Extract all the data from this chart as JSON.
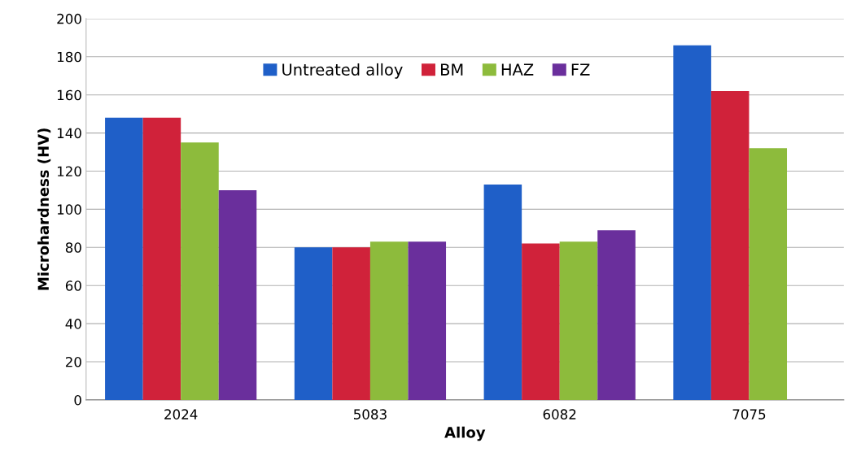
{
  "chart_data": {
    "type": "bar",
    "xlabel": "Alloy",
    "ylabel": "Microhardness (HV)",
    "categories": [
      "2024",
      "5083",
      "6082",
      "7075"
    ],
    "series": [
      {
        "name": "Untreated alloy",
        "color": "#1f5fc8",
        "values": [
          148,
          80,
          113,
          186
        ]
      },
      {
        "name": "BM",
        "color": "#d0223a",
        "values": [
          148,
          80,
          82,
          162
        ]
      },
      {
        "name": "HAZ",
        "color": "#8dbb3c",
        "values": [
          135,
          83,
          83,
          132
        ]
      },
      {
        "name": "FZ",
        "color": "#6a2f9c",
        "values": [
          110,
          83,
          89,
          null
        ]
      }
    ],
    "ylim": [
      0,
      200
    ],
    "yticks": [
      0,
      20,
      40,
      60,
      80,
      100,
      120,
      140,
      160,
      180,
      200
    ],
    "grid": "y",
    "legend": "top"
  }
}
